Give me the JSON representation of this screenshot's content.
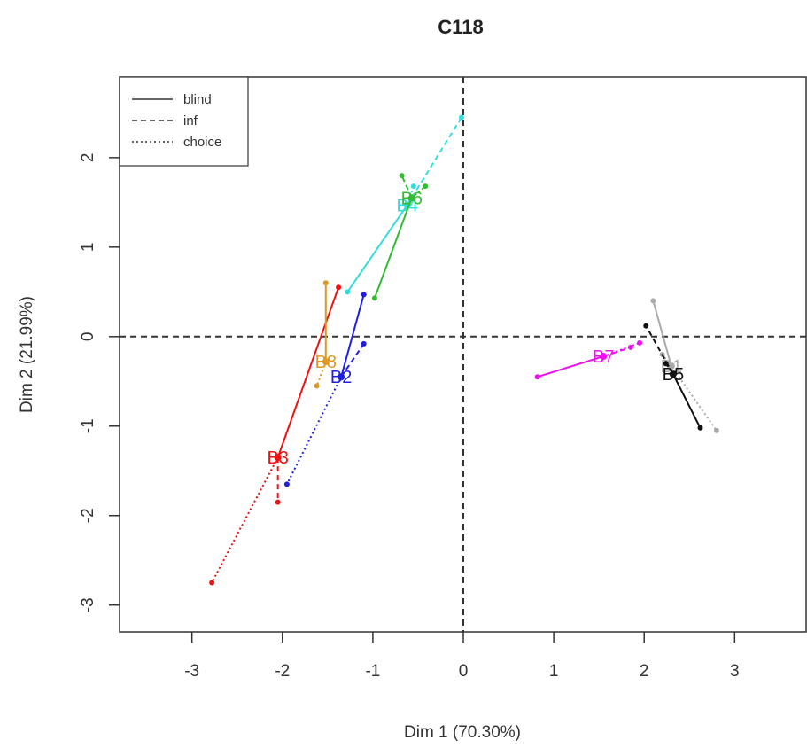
{
  "chart_data": {
    "type": "scatter",
    "title": "C118",
    "xlabel": "Dim 1 (70.30%)",
    "ylabel": "Dim 2 (21.99%)",
    "xlim": [
      -3.8,
      3.8
    ],
    "ylim": [
      -3.3,
      2.9
    ],
    "xticks": [
      -3,
      -2,
      -1,
      0,
      1,
      2,
      3
    ],
    "yticks": [
      -3,
      -2,
      -1,
      0,
      1,
      2
    ],
    "reference_lines": {
      "x": 0,
      "y": 0,
      "style": "dashed"
    },
    "legend": {
      "position": "top-left",
      "entries": [
        {
          "label": "blind",
          "linestyle": "solid"
        },
        {
          "label": "inf",
          "linestyle": "dashed"
        },
        {
          "label": "choice",
          "linestyle": "dotted"
        }
      ]
    },
    "series": [
      {
        "label": "B1",
        "color": "#aaaaaa",
        "center": [
          2.3,
          -0.33
        ],
        "blind": [
          2.1,
          0.4
        ],
        "inf": [
          2.2,
          -0.2
        ],
        "choice": [
          2.8,
          -1.05
        ]
      },
      {
        "label": "B2",
        "color": "#1f1fe0",
        "center": [
          -1.35,
          -0.45
        ],
        "blind": [
          -1.1,
          0.47
        ],
        "inf": [
          -1.1,
          -0.08
        ],
        "choice": [
          -1.95,
          -1.65
        ]
      },
      {
        "label": "B3",
        "color": "#ee1111",
        "center": [
          -2.05,
          -1.35
        ],
        "blind": [
          -1.38,
          0.55
        ],
        "inf": [
          -2.05,
          -1.85
        ],
        "choice": [
          -2.78,
          -2.75
        ]
      },
      {
        "label": "B4",
        "color": "#33dddd",
        "center": [
          -0.62,
          1.47
        ],
        "blind": [
          -1.28,
          0.5
        ],
        "inf": [
          -0.02,
          2.45
        ],
        "choice": [
          -0.55,
          1.68
        ]
      },
      {
        "label": "B5",
        "color": "#111111",
        "center": [
          2.32,
          -0.42
        ],
        "blind": [
          2.62,
          -1.02
        ],
        "inf": [
          2.02,
          0.12
        ],
        "choice": [
          2.24,
          -0.3
        ]
      },
      {
        "label": "B6",
        "color": "#33bb33",
        "center": [
          -0.57,
          1.55
        ],
        "blind": [
          -0.98,
          0.43
        ],
        "inf": [
          -0.68,
          1.8
        ],
        "choice": [
          -0.42,
          1.68
        ]
      },
      {
        "label": "B7",
        "color": "#ee11ee",
        "center": [
          1.55,
          -0.22
        ],
        "blind": [
          0.82,
          -0.45
        ],
        "inf": [
          1.85,
          -0.12
        ],
        "choice": [
          1.95,
          -0.07
        ]
      },
      {
        "label": "B8",
        "color": "#dd9922",
        "center": [
          -1.52,
          -0.28
        ],
        "blind": [
          -1.52,
          0.6
        ],
        "inf": [
          -1.52,
          -0.28
        ],
        "choice": [
          -1.62,
          -0.55
        ]
      }
    ]
  }
}
